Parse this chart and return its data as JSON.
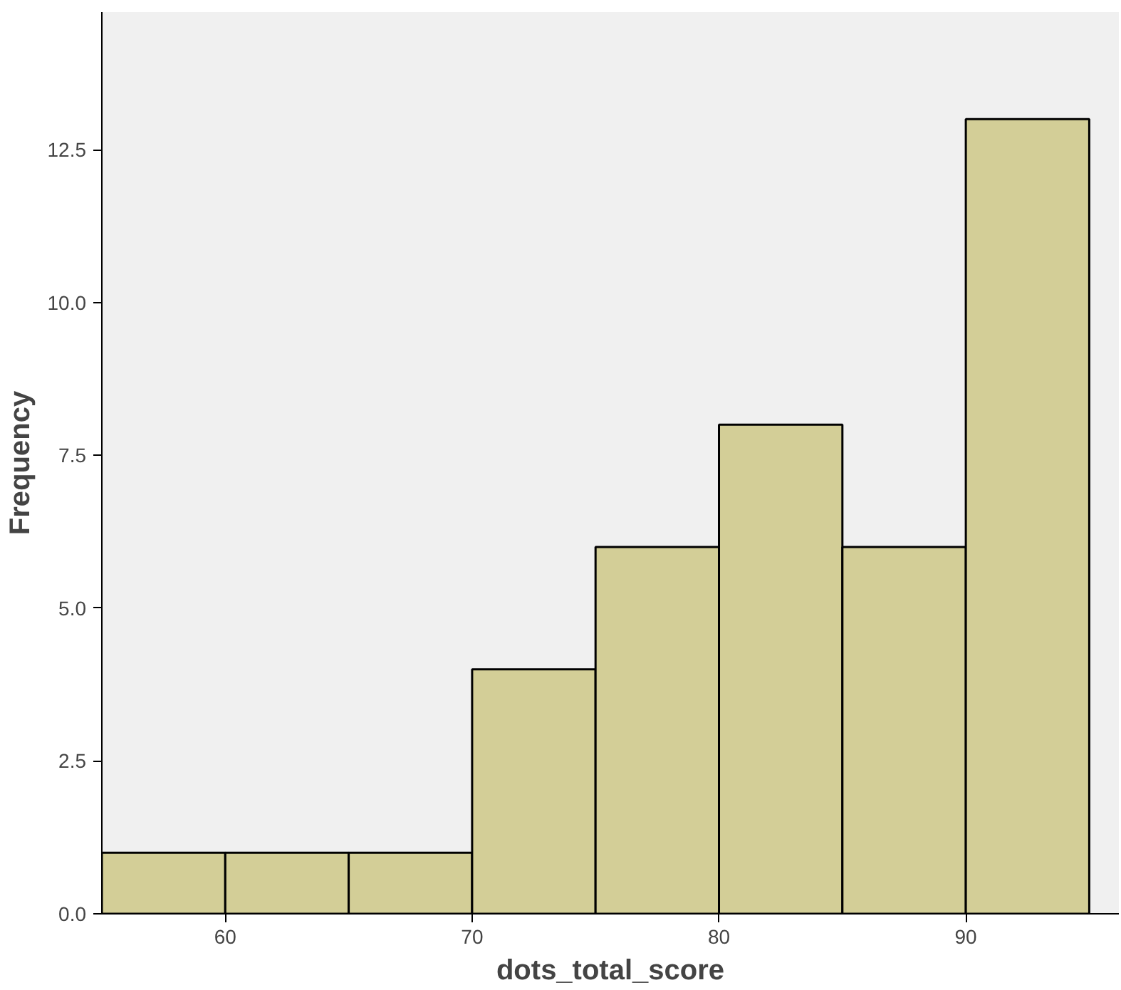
{
  "chart_data": {
    "type": "histogram",
    "xlabel": "dots_total_score",
    "ylabel": "Frequency",
    "bins": [
      55,
      60,
      65,
      70,
      75,
      80,
      85,
      90,
      95
    ],
    "values": [
      1,
      1,
      1,
      4,
      6,
      8,
      6,
      13
    ],
    "color": "#d3ce97",
    "xlim": [
      55,
      96.2
    ],
    "ylim": [
      0,
      14.75
    ],
    "xticks": [
      60,
      70,
      80,
      90
    ],
    "yticks": [
      {
        "value": 0,
        "label": "0.0"
      },
      {
        "value": 2.5,
        "label": "2.5"
      },
      {
        "value": 5,
        "label": "5.0"
      },
      {
        "value": 7.5,
        "label": "7.5"
      },
      {
        "value": 10,
        "label": "10.0"
      },
      {
        "value": 12.5,
        "label": "12.5"
      }
    ],
    "grid": false
  }
}
